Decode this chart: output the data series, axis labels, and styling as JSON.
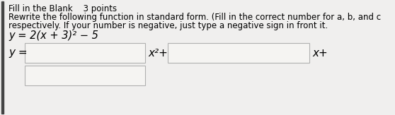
{
  "title": "Fill in the Blank    3 points",
  "line1": "Rewrite the following function in standard form. (Fill in the correct number for a, b, and c",
  "line2": "respectively. If your number is negative, just type a negative sign in front it.",
  "equation": "y = 2(x + 3)² − 5",
  "y_label": "y =",
  "x2_label": "x²+",
  "x_label": "x+",
  "bg_color": "#e8e8e8",
  "inner_bg": "#f0efee",
  "box_color": "#f5f4f2",
  "box_border": "#b0b0b0",
  "text_color": "#000000",
  "left_bar_color": "#444444",
  "title_fontsize": 8.5,
  "body_fontsize": 8.5,
  "eq_fontsize": 10.5,
  "label_fontsize": 11,
  "fig_w": 5.58,
  "fig_h": 1.63,
  "dpi": 100
}
